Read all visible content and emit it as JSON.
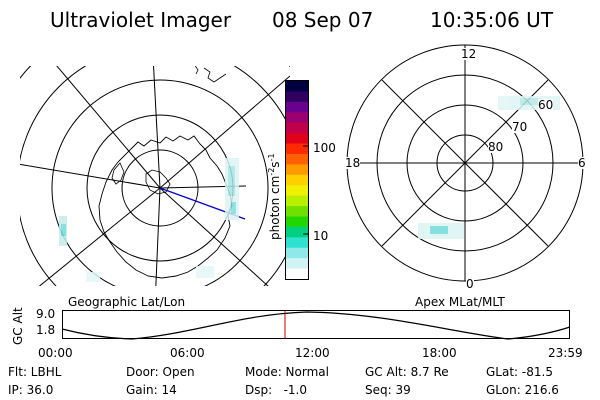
{
  "header": {
    "title": "Ultraviolet Imager",
    "date": "08 Sep 07",
    "time": "10:35:06 UT"
  },
  "geo_panel": {
    "label": "Geographic Lat/Lon"
  },
  "apex_panel": {
    "label": "Apex MLat/MLT",
    "mlt_labels": {
      "top": "12",
      "left": "18",
      "right": "6",
      "bottom": "0"
    },
    "mlat_labels": [
      "60",
      "70",
      "80"
    ]
  },
  "colorbar": {
    "unit_label": "photon cm-2s-1",
    "unit_main": "photon cm",
    "unit_exp1": "-2",
    "unit_s": "s",
    "unit_exp2": "-1",
    "ticks": [
      "100",
      "10"
    ],
    "colors": [
      "#000040",
      "#300060",
      "#6a0090",
      "#9a0070",
      "#c0004a",
      "#e0001a",
      "#ff2a00",
      "#ff6000",
      "#ff9a00",
      "#ffd000",
      "#f0f000",
      "#b8f000",
      "#70e000",
      "#20d800",
      "#00d080",
      "#30e0d0",
      "#90e8e8",
      "#d0f4f4",
      "#ffffff"
    ]
  },
  "alt_plot": {
    "ylabel": "GC Alt",
    "yticks": [
      "9.0",
      "1.8"
    ],
    "xticks": [
      "00:00",
      "06:00",
      "12:00",
      "18:00",
      "23:59"
    ],
    "marker_color": "#cc0000"
  },
  "info": {
    "flt": "Flt: LBHL",
    "door": "Door: Open",
    "mode": "Mode: Normal",
    "gc_alt": "GC Alt: 8.7 Re",
    "glat": "GLat: -81.5",
    "ip": "IP: 36.0",
    "gain": "Gain: 14",
    "dsp": "Dsp:   -1.0",
    "seq": "Seq: 39",
    "glon": "GLon: 216.6"
  }
}
